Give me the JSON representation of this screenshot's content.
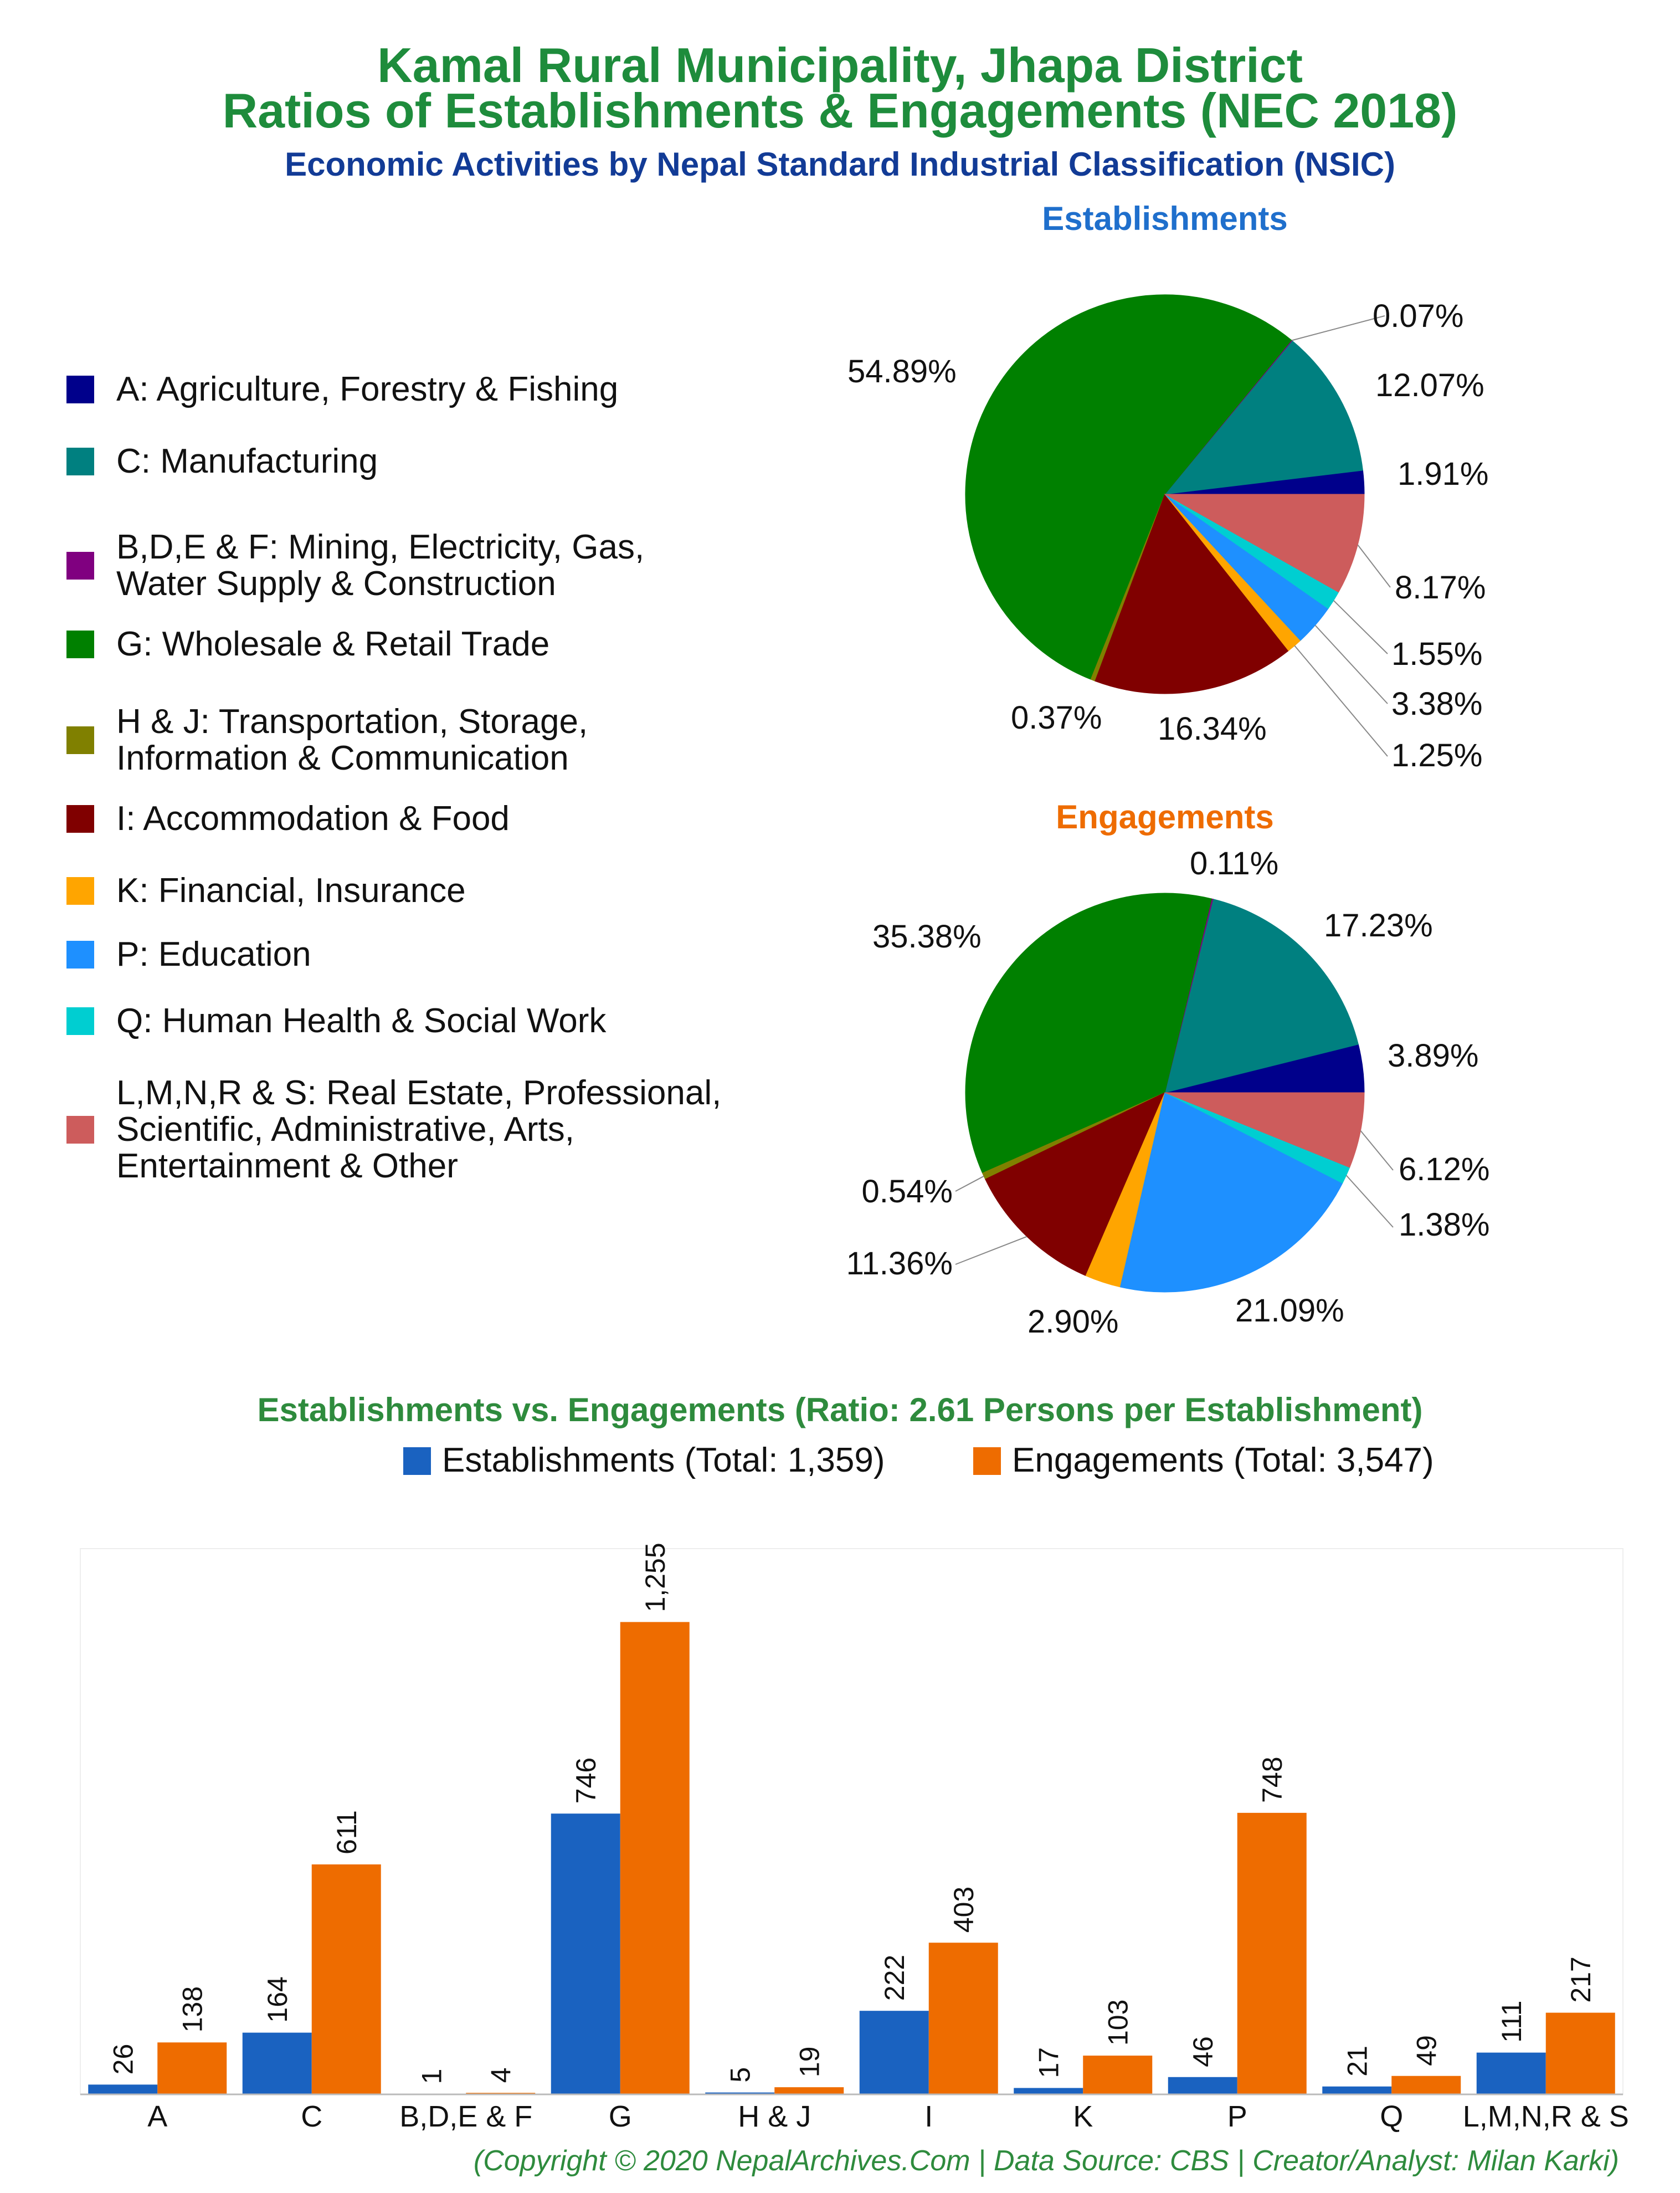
{
  "header": {
    "title_line1": "Kamal Rural Municipality, Jhapa District",
    "title_line2": "Ratios of Establishments & Engagements (NEC 2018)",
    "subtitle": "Economic Activities by Nepal Standard Industrial Classification (NSIC)"
  },
  "legend": [
    {
      "label": "A: Agriculture, Forestry & Fishing",
      "color": "#00008b"
    },
    {
      "label": "C: Manufacturing",
      "color": "#008080"
    },
    {
      "label": "B,D,E & F: Mining, Electricity, Gas,\nWater Supply & Construction",
      "color": "#800080"
    },
    {
      "label": "G: Wholesale & Retail Trade",
      "color": "#008000"
    },
    {
      "label": "H & J: Transportation, Storage,\nInformation & Communication",
      "color": "#808000"
    },
    {
      "label": "I: Accommodation & Food",
      "color": "#800000"
    },
    {
      "label": "K: Financial, Insurance",
      "color": "#ffa500"
    },
    {
      "label": "P: Education",
      "color": "#1e90ff"
    },
    {
      "label": "Q: Human Health & Social Work",
      "color": "#00ced1"
    },
    {
      "label": "L,M,N,R & S: Real Estate, Professional,\nScientific, Administrative, Arts,\nEntertainment & Other",
      "color": "#cd5c5c"
    }
  ],
  "chart_data": [
    {
      "type": "pie",
      "title": "Establishments",
      "title_color": "#1f6fcc",
      "slices": [
        {
          "key": "A",
          "value": 1.91,
          "label": "1.91%",
          "color": "#00008b"
        },
        {
          "key": "C",
          "value": 12.07,
          "label": "12.07%",
          "color": "#008080"
        },
        {
          "key": "B,D,E & F",
          "value": 0.07,
          "label": "0.07%",
          "color": "#800080"
        },
        {
          "key": "G",
          "value": 54.89,
          "label": "54.89%",
          "color": "#008000"
        },
        {
          "key": "H & J",
          "value": 0.37,
          "label": "0.37%",
          "color": "#808000"
        },
        {
          "key": "I",
          "value": 16.34,
          "label": "16.34%",
          "color": "#800000"
        },
        {
          "key": "K",
          "value": 1.25,
          "label": "1.25%",
          "color": "#ffa500"
        },
        {
          "key": "P",
          "value": 3.38,
          "label": "3.38%",
          "color": "#1e90ff"
        },
        {
          "key": "Q",
          "value": 1.55,
          "label": "1.55%",
          "color": "#00ced1"
        },
        {
          "key": "L,M,N,R & S",
          "value": 8.17,
          "label": "8.17%",
          "color": "#cd5c5c"
        }
      ]
    },
    {
      "type": "pie",
      "title": "Engagements",
      "title_color": "#ee6c00",
      "slices": [
        {
          "key": "A",
          "value": 3.89,
          "label": "3.89%",
          "color": "#00008b"
        },
        {
          "key": "C",
          "value": 17.23,
          "label": "17.23%",
          "color": "#008080"
        },
        {
          "key": "B,D,E & F",
          "value": 0.11,
          "label": "0.11%",
          "color": "#800080"
        },
        {
          "key": "G",
          "value": 35.38,
          "label": "35.38%",
          "color": "#008000"
        },
        {
          "key": "H & J",
          "value": 0.54,
          "label": "0.54%",
          "color": "#808000"
        },
        {
          "key": "I",
          "value": 11.36,
          "label": "11.36%",
          "color": "#800000"
        },
        {
          "key": "K",
          "value": 2.9,
          "label": "2.90%",
          "color": "#ffa500"
        },
        {
          "key": "P",
          "value": 21.09,
          "label": "21.09%",
          "color": "#1e90ff"
        },
        {
          "key": "Q",
          "value": 1.38,
          "label": "1.38%",
          "color": "#00ced1"
        },
        {
          "key": "L,M,N,R & S",
          "value": 6.12,
          "label": "6.12%",
          "color": "#cd5c5c"
        }
      ]
    },
    {
      "type": "bar",
      "title": "Establishments vs. Engagements (Ratio: 2.61 Persons per Establishment)",
      "categories": [
        "A",
        "C",
        "B,D,E & F",
        "G",
        "H & J",
        "I",
        "K",
        "P",
        "Q",
        "L,M,N,R & S"
      ],
      "series": [
        {
          "name": "Establishments (Total: 1,359)",
          "color": "#1a62c0",
          "values": [
            26,
            164,
            1,
            746,
            5,
            222,
            17,
            46,
            21,
            111
          ],
          "value_labels": [
            "26",
            "164",
            "1",
            "746",
            "5",
            "222",
            "17",
            "46",
            "21",
            "111"
          ]
        },
        {
          "name": "Engagements (Total: 3,547)",
          "color": "#ee6c00",
          "values": [
            138,
            611,
            4,
            1255,
            19,
            403,
            103,
            748,
            49,
            217
          ],
          "value_labels": [
            "138",
            "611",
            "4",
            "1,255",
            "19",
            "403",
            "103",
            "748",
            "49",
            "217"
          ]
        }
      ],
      "ylim": [
        0,
        1450
      ],
      "grid": false
    }
  ],
  "footer": "(Copyright © 2020 NepalArchives.Com | Data Source: CBS | Creator/Analyst: Milan Karki)"
}
